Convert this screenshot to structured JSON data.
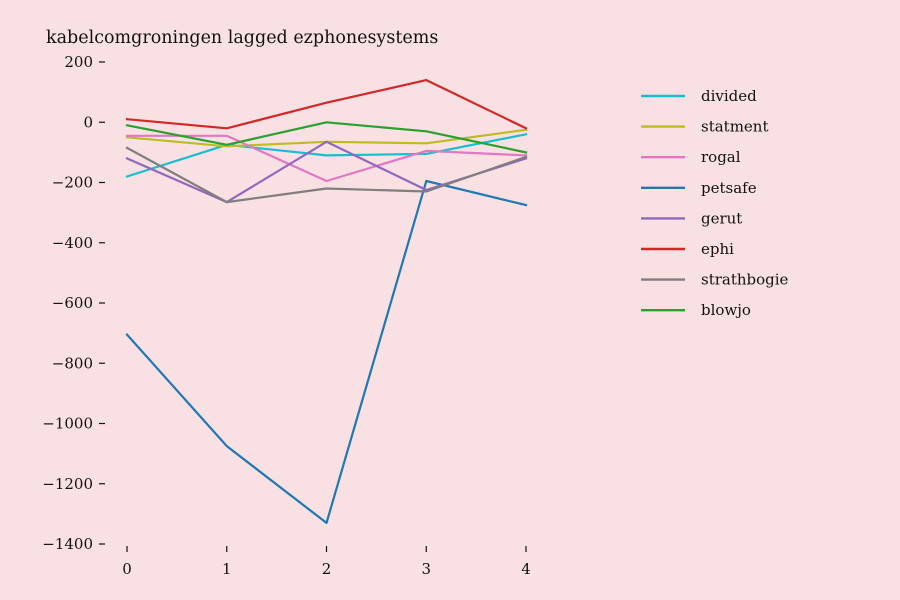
{
  "chart_data": {
    "type": "line",
    "title": "kabelcomgroningen lagged ezphonesystems",
    "xlabel": "",
    "ylabel": "",
    "x": [
      0,
      1,
      2,
      3,
      4
    ],
    "xlim": [
      0,
      4
    ],
    "ylim": [
      -1400,
      200
    ],
    "xticks": [
      0,
      1,
      2,
      3,
      4
    ],
    "yticks": [
      200,
      0,
      -200,
      -400,
      -600,
      -800,
      -1000,
      -1200,
      -1400
    ],
    "ytick_labels": [
      "200",
      "0",
      "−200",
      "−400",
      "−600",
      "−800",
      "−1000",
      "−1200",
      "−1400"
    ],
    "grid": false,
    "legend_position": "right",
    "series": [
      {
        "name": "divided",
        "color": "#17becf",
        "values": [
          -180,
          -75,
          -110,
          -105,
          -40
        ]
      },
      {
        "name": "statment",
        "color": "#bcbd22",
        "values": [
          -50,
          -80,
          -65,
          -70,
          -25
        ]
      },
      {
        "name": "rogal",
        "color": "#e377c2",
        "values": [
          -45,
          -45,
          -195,
          -95,
          -110
        ]
      },
      {
        "name": "petsafe",
        "color": "#1f77b4",
        "values": [
          -705,
          -1075,
          -1330,
          -195,
          -275
        ]
      },
      {
        "name": "gerut",
        "color": "#9467bd",
        "values": [
          -120,
          -265,
          -65,
          -225,
          -120
        ]
      },
      {
        "name": "ephi",
        "color": "#d62728",
        "values": [
          10,
          -20,
          65,
          140,
          -20
        ]
      },
      {
        "name": "strathbogie",
        "color": "#7f7f7f",
        "values": [
          -85,
          -265,
          -220,
          -230,
          -115
        ]
      },
      {
        "name": "blowjo",
        "color": "#2ca02c",
        "values": [
          -10,
          -75,
          0,
          -30,
          -100
        ]
      }
    ]
  }
}
